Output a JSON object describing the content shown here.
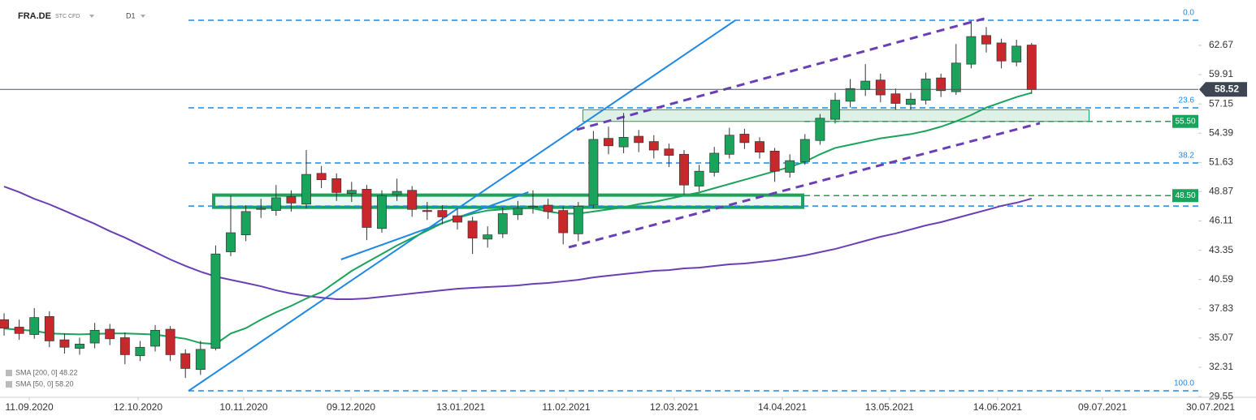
{
  "header": {
    "symbol": "FRA.DE",
    "instrument": "STC CFD",
    "interval": "D1"
  },
  "chart_data": {
    "type": "candlestick",
    "xlim": [
      -0.27,
      82.85
    ],
    "ylim": [
      29.48,
      66.95
    ],
    "yticks": [
      29.55,
      32.31,
      35.07,
      37.83,
      40.59,
      43.35,
      46.11,
      48.87,
      51.63,
      54.39,
      57.15,
      59.91,
      62.67
    ],
    "xticks": [
      {
        "value": 1.67,
        "label": "11.09.2020"
      },
      {
        "value": 8.87,
        "label": "12.10.2020"
      },
      {
        "value": 15.86,
        "label": "10.11.2020"
      },
      {
        "value": 22.96,
        "label": "09.12.2020"
      },
      {
        "value": 30.22,
        "label": "13.01.2021"
      },
      {
        "value": 37.2,
        "label": "11.02.2021"
      },
      {
        "value": 44.35,
        "label": "12.03.2021"
      },
      {
        "value": 51.5,
        "label": "14.04.2021"
      },
      {
        "value": 58.6,
        "label": "13.05.2021"
      },
      {
        "value": 65.75,
        "label": "14.06.2021"
      },
      {
        "value": 72.69,
        "label": "09.07.2021"
      },
      {
        "value": 79.84,
        "label": "30.07.2021"
      }
    ],
    "up_color": "#1aa35b",
    "down_color": "#c8282c",
    "open": [
      36.8,
      36.1,
      35.4,
      37.1,
      34.9,
      34.1,
      34.6,
      35.9,
      35.1,
      33.4,
      34.3,
      35.9,
      33.6,
      32.1,
      34.1,
      43.2,
      44.8,
      47.2,
      47.1,
      48.4,
      47.7,
      50.6,
      50.1,
      48.7,
      49.1,
      45.4,
      48.6,
      49.0,
      47.1,
      47.1,
      46.6,
      46.1,
      44.4,
      44.9,
      46.7,
      47.4,
      47.6,
      47.1,
      44.9,
      47.6,
      53.9,
      53.1,
      54.1,
      53.6,
      52.9,
      52.4,
      49.4,
      50.7,
      52.4,
      54.3,
      53.6,
      52.7,
      50.7,
      51.7,
      53.7,
      55.7,
      57.4,
      58.5,
      59.4,
      58.1,
      57.1,
      57.5,
      59.6,
      58.3,
      60.9,
      63.6,
      62.9,
      61.1,
      62.7
    ],
    "high": [
      37.4,
      36.8,
      37.9,
      37.6,
      35.5,
      35.1,
      36.5,
      36.4,
      35.6,
      34.8,
      36.3,
      36.2,
      34.0,
      34.8,
      43.8,
      48.5,
      47.6,
      48.2,
      49.5,
      49.0,
      52.8,
      51.3,
      50.6,
      49.8,
      49.5,
      49.0,
      50.1,
      49.4,
      47.9,
      47.6,
      47.3,
      46.5,
      45.6,
      47.4,
      48.0,
      49.0,
      48.2,
      47.5,
      47.9,
      54.6,
      55.0,
      56.3,
      54.7,
      54.2,
      53.4,
      52.8,
      51.4,
      53.1,
      54.9,
      54.8,
      54.0,
      53.0,
      52.4,
      54.3,
      56.2,
      58.2,
      59.5,
      60.9,
      60.0,
      58.6,
      58.2,
      60.1,
      60.0,
      62.8,
      65.0,
      64.4,
      63.3,
      63.2,
      62.9
    ],
    "low": [
      35.3,
      34.9,
      35.0,
      34.2,
      33.6,
      33.5,
      34.1,
      34.4,
      32.6,
      32.9,
      33.8,
      32.9,
      31.3,
      31.6,
      33.9,
      42.8,
      44.2,
      46.4,
      46.6,
      47.0,
      47.3,
      49.2,
      48.0,
      47.9,
      44.3,
      45.0,
      48.0,
      46.5,
      46.2,
      45.8,
      45.3,
      43.0,
      43.6,
      44.5,
      46.2,
      46.8,
      46.3,
      43.9,
      44.2,
      47.3,
      52.4,
      52.5,
      52.6,
      52.0,
      51.2,
      48.6,
      48.9,
      50.3,
      52.0,
      52.9,
      52.0,
      49.8,
      50.2,
      51.4,
      53.3,
      55.3,
      56.8,
      57.9,
      57.3,
      56.6,
      56.6,
      57.1,
      57.8,
      58.0,
      60.5,
      62.0,
      60.5,
      60.7,
      58.1
    ],
    "close": [
      36.0,
      35.5,
      37.0,
      34.8,
      34.2,
      34.5,
      35.8,
      35.0,
      33.5,
      34.2,
      35.8,
      33.5,
      32.2,
      34.0,
      43.0,
      45.0,
      47.0,
      47.3,
      48.3,
      47.8,
      50.5,
      50.0,
      48.8,
      49.0,
      45.5,
      48.5,
      48.9,
      47.2,
      47.0,
      46.5,
      46.0,
      44.5,
      44.8,
      46.8,
      47.3,
      47.5,
      47.0,
      45.0,
      47.5,
      53.8,
      53.2,
      54.0,
      53.5,
      52.8,
      52.3,
      49.5,
      50.8,
      52.5,
      54.2,
      53.5,
      52.6,
      50.8,
      51.8,
      53.8,
      55.8,
      57.5,
      58.6,
      59.3,
      58.0,
      57.2,
      57.6,
      59.5,
      58.4,
      61.0,
      63.5,
      62.8,
      61.2,
      62.6,
      58.5
    ],
    "series": [
      {
        "name": "SMA [200, 0] 48.22",
        "color": "#6a3fb5",
        "values": [
          49.36,
          48.83,
          48.2,
          47.68,
          47.07,
          46.45,
          45.84,
          45.15,
          44.54,
          43.85,
          43.17,
          42.48,
          41.87,
          41.33,
          40.87,
          40.56,
          40.26,
          39.95,
          39.57,
          39.27,
          39.04,
          38.88,
          38.73,
          38.73,
          38.81,
          38.96,
          39.11,
          39.27,
          39.42,
          39.57,
          39.72,
          39.8,
          39.88,
          39.95,
          40.03,
          40.18,
          40.26,
          40.41,
          40.56,
          40.79,
          40.95,
          41.1,
          41.25,
          41.41,
          41.48,
          41.64,
          41.71,
          41.87,
          42.02,
          42.1,
          42.25,
          42.4,
          42.63,
          42.86,
          43.17,
          43.47,
          43.85,
          44.24,
          44.62,
          44.93,
          45.31,
          45.69,
          46.0,
          46.38,
          46.76,
          47.14,
          47.53,
          47.83,
          48.22
        ]
      },
      {
        "name": "SMA [50, 0] 58.20",
        "color": "#1aa35b",
        "values": [
          35.97,
          35.85,
          35.75,
          35.5,
          35.45,
          35.42,
          35.45,
          35.5,
          35.5,
          35.45,
          35.4,
          35.2,
          35.0,
          34.6,
          34.5,
          35.5,
          36.0,
          36.8,
          37.5,
          38.1,
          38.8,
          39.4,
          40.4,
          41.4,
          42.2,
          43.0,
          43.8,
          44.5,
          45.2,
          45.9,
          46.4,
          46.8,
          47.1,
          47.2,
          47.3,
          47.3,
          47.0,
          46.8,
          46.8,
          47.0,
          47.2,
          47.4,
          47.7,
          47.9,
          48.2,
          48.5,
          48.8,
          49.2,
          49.6,
          50.0,
          50.4,
          50.8,
          51.2,
          51.7,
          52.4,
          53.0,
          53.3,
          53.6,
          53.9,
          54.1,
          54.3,
          54.6,
          55.0,
          55.5,
          56.1,
          56.8,
          57.3,
          57.8,
          58.2
        ]
      }
    ],
    "fib_levels": [
      {
        "value": 65.04,
        "label": "0.0"
      },
      {
        "value": 56.78,
        "label": "23.6"
      },
      {
        "value": 51.58,
        "label": "38.2"
      },
      {
        "value": 47.52,
        "label": null
      },
      {
        "value": 30.09,
        "label": "100.0"
      }
    ],
    "fib_color": "#1e88e5",
    "levels": [
      {
        "value": 55.5,
        "label": "55.50"
      },
      {
        "value": 48.5,
        "label": "48.50"
      }
    ],
    "level_color": "#1aa35b",
    "zones": [
      {
        "x": [
          38.3,
          71.8
        ],
        "y": [
          55.5,
          56.6
        ],
        "thick": false
      },
      {
        "x": [
          13.87,
          52.85
        ],
        "y": [
          47.4,
          48.55
        ],
        "thick": true
      }
    ],
    "trendlines": [
      {
        "color": "#1e88e5",
        "dashed": false,
        "x": [
          12.2,
          48.4
        ],
        "y": [
          30.08,
          65.04
        ]
      },
      {
        "color": "#1e88e5",
        "dashed": false,
        "x": [
          22.3,
          34.7
        ],
        "y": [
          42.48,
          48.83
        ]
      },
      {
        "color": "#6a3fb5",
        "dashed": true,
        "x": [
          37.9,
          65.05
        ],
        "y": [
          54.72,
          65.27
        ]
      },
      {
        "color": "#6a3fb5",
        "dashed": true,
        "x": [
          37.37,
          68.55
        ],
        "y": [
          43.63,
          55.33
        ]
      }
    ],
    "last_price": 58.52
  }
}
